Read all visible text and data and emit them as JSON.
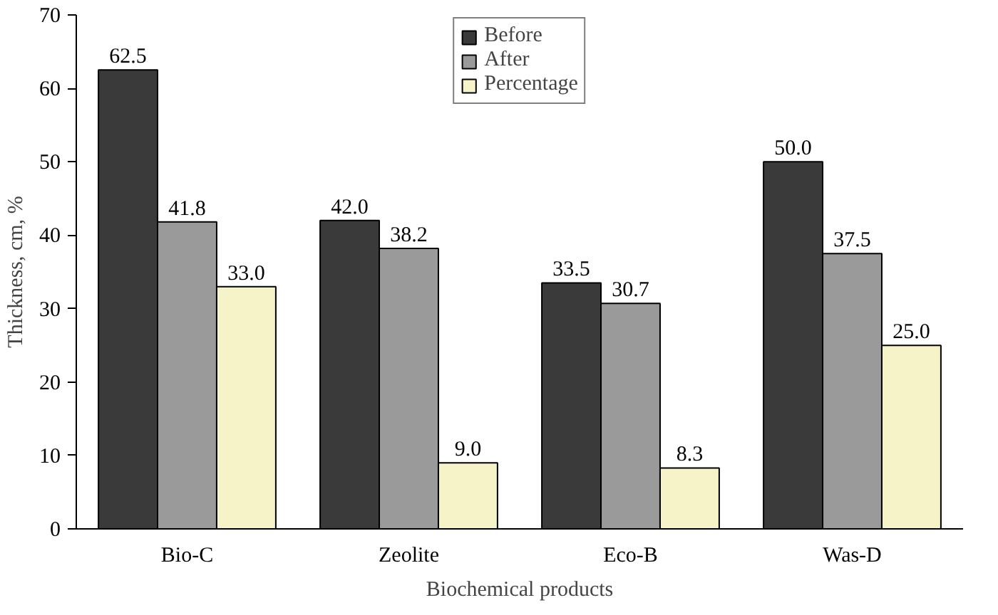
{
  "chart_data": {
    "type": "bar",
    "xlabel": "Biochemical products",
    "ylabel": "Thickness, cm, %",
    "categories": [
      "Bio-C",
      "Zeolite",
      "Eco-B",
      "Was-D"
    ],
    "series": [
      {
        "name": "Before",
        "color": "#3a3a3a",
        "values": [
          62.5,
          42.0,
          33.5,
          50.0
        ],
        "value_labels": [
          "62.5",
          "42.0",
          "33.5",
          "50.0"
        ]
      },
      {
        "name": "After",
        "color": "#9a9a9a",
        "values": [
          41.8,
          38.2,
          30.7,
          37.5
        ],
        "value_labels": [
          "41.8",
          "38.2",
          "30.7",
          "37.5"
        ]
      },
      {
        "name": "Percentage",
        "color": "#f7f3c9",
        "values": [
          33.0,
          9.0,
          8.3,
          25.0
        ],
        "value_labels": [
          "33.0",
          "9.0",
          "8.3",
          "25.0"
        ]
      }
    ],
    "ylim": [
      0,
      70
    ],
    "yticks": [
      0,
      10,
      20,
      30,
      40,
      50,
      60,
      70
    ],
    "grid": false,
    "legend": "top"
  }
}
